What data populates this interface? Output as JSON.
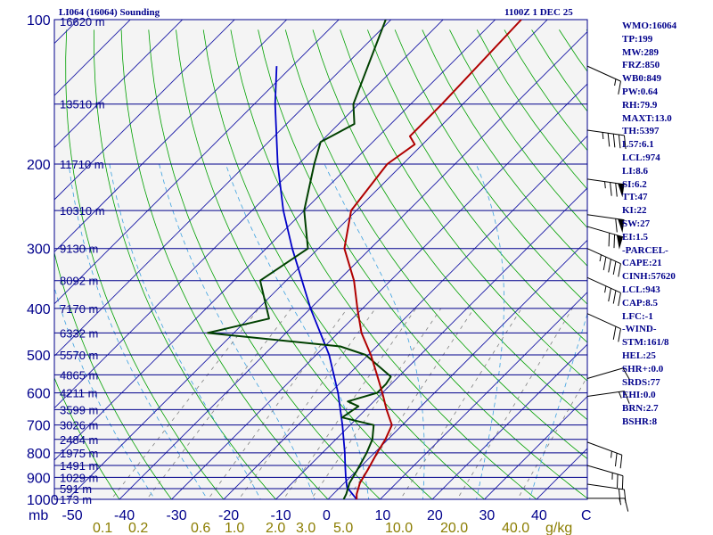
{
  "header": {
    "title": "LI064 (16064) Sounding",
    "time": "1100Z  1 DEC 25"
  },
  "indices": [
    "WMO:16064",
    "TP:199",
    "MW:289",
    "FRZ:850",
    "WB0:849",
    "PW:0.64",
    "RH:79.9",
    "MAXT:13.0",
    "TH:5397",
    "L57:6.1",
    "LCL:974",
    "LI:8.6",
    "SI:6.2",
    "TT:47",
    "KI:22",
    "SW:27",
    "EI:1.5",
    "-PARCEL-",
    "CAPE:21",
    "CINH:57620",
    "LCL:943",
    "CAP:8.5",
    "LFC:-1",
    "-WIND-",
    "STM:161/8",
    "HEL:25",
    "SHR+:0.0",
    "SRDS:77",
    "EHI:0.0",
    "BRN:2.7",
    "BSHR:8"
  ],
  "colors": {
    "background": "#ffffff",
    "plot_background": "#f4f4f4",
    "isobar": "#00008b",
    "isotherm": "#1a1aa6",
    "dry_adiabat": "#00a000",
    "moist_adiabat": "#3aa0e0",
    "mixing_ratio": "#808080",
    "temperature": "#b00000",
    "dewpoint": "#004000",
    "parcel": "#0000c8",
    "text": "#00008b",
    "wind_barb": "#000000"
  },
  "chart_data": {
    "type": "line",
    "subtype": "skew-T log-P sounding",
    "xlabel": "C",
    "ylabel": "mb",
    "x_range": [
      -50,
      50
    ],
    "p_range": [
      1000,
      100
    ],
    "pressure_ticks": [
      100,
      200,
      300,
      400,
      500,
      600,
      700,
      800,
      900,
      1000
    ],
    "temperature_ticks": [
      -50,
      -40,
      -30,
      -20,
      -10,
      0,
      10,
      20,
      30,
      40
    ],
    "mixing_ratio_label": "g/kg",
    "mixing_ratio_ticks": [
      "0.1",
      "0.2",
      "0.6",
      "1.0",
      "2.0",
      "3.0",
      "5.0",
      "10.0",
      "20.0",
      "40.0"
    ],
    "mixing_ratio_values": [
      0.1,
      0.2,
      0.6,
      1.0,
      2.0,
      3.0,
      5.0,
      10.0,
      20.0,
      40.0
    ],
    "height_levels": [
      {
        "p": 100,
        "label": "16620 m"
      },
      {
        "p": 150,
        "label": "13510 m"
      },
      {
        "p": 200,
        "label": "11710 m"
      },
      {
        "p": 250,
        "label": "10310 m"
      },
      {
        "p": 300,
        "label": "9130 m"
      },
      {
        "p": 350,
        "label": "8092 m"
      },
      {
        "p": 400,
        "label": "7170 m"
      },
      {
        "p": 450,
        "label": "6332 m"
      },
      {
        "p": 500,
        "label": "5570 m"
      },
      {
        "p": 550,
        "label": "4865 m"
      },
      {
        "p": 600,
        "label": "4211 m"
      },
      {
        "p": 650,
        "label": "3599 m"
      },
      {
        "p": 700,
        "label": "3026 m"
      },
      {
        "p": 750,
        "label": "2484 m"
      },
      {
        "p": 800,
        "label": "1975 m"
      },
      {
        "p": 850,
        "label": "1491 m"
      },
      {
        "p": 900,
        "label": "1029 m"
      },
      {
        "p": 950,
        "label": "591 m"
      },
      {
        "p": 1000,
        "label": "173 m"
      }
    ],
    "temperature": [
      {
        "p": 1012,
        "t": 6.0
      },
      {
        "p": 1000,
        "t": 5.5
      },
      {
        "p": 975,
        "t": 4.5
      },
      {
        "p": 925,
        "t": 3.0
      },
      {
        "p": 870,
        "t": 2.0
      },
      {
        "p": 800,
        "t": 0.5
      },
      {
        "p": 750,
        "t": -0.5
      },
      {
        "p": 700,
        "t": -2.0
      },
      {
        "p": 650,
        "t": -6.0
      },
      {
        "p": 600,
        "t": -10.0
      },
      {
        "p": 550,
        "t": -14.5
      },
      {
        "p": 500,
        "t": -19.5
      },
      {
        "p": 450,
        "t": -25.5
      },
      {
        "p": 400,
        "t": -31.0
      },
      {
        "p": 350,
        "t": -37.0
      },
      {
        "p": 300,
        "t": -45.0
      },
      {
        "p": 250,
        "t": -51.0
      },
      {
        "p": 200,
        "t": -53.0
      },
      {
        "p": 182,
        "t": -51.5
      },
      {
        "p": 175,
        "t": -54.0
      },
      {
        "p": 150,
        "t": -54.0
      },
      {
        "p": 100,
        "t": -55.0
      }
    ],
    "dewpoint": [
      {
        "p": 1012,
        "t": 4.0
      },
      {
        "p": 1000,
        "t": 3.0
      },
      {
        "p": 975,
        "t": 2.5
      },
      {
        "p": 925,
        "t": 1.0
      },
      {
        "p": 870,
        "t": 0.0
      },
      {
        "p": 800,
        "t": -1.5
      },
      {
        "p": 750,
        "t": -3.0
      },
      {
        "p": 700,
        "t": -5.5
      },
      {
        "p": 675,
        "t": -13.0
      },
      {
        "p": 640,
        "t": -12.0
      },
      {
        "p": 625,
        "t": -15.0
      },
      {
        "p": 600,
        "t": -11.0
      },
      {
        "p": 575,
        "t": -11.0
      },
      {
        "p": 555,
        "t": -11.5
      },
      {
        "p": 500,
        "t": -20.5
      },
      {
        "p": 480,
        "t": -27.0
      },
      {
        "p": 450,
        "t": -55.0
      },
      {
        "p": 420,
        "t": -46.0
      },
      {
        "p": 350,
        "t": -55.0
      },
      {
        "p": 300,
        "t": -52.0
      },
      {
        "p": 250,
        "t": -60.0
      },
      {
        "p": 200,
        "t": -67.0
      },
      {
        "p": 180,
        "t": -70.0
      },
      {
        "p": 165,
        "t": -67.0
      },
      {
        "p": 150,
        "t": -71.0
      },
      {
        "p": 100,
        "t": -81.0
      }
    ],
    "parcel": [
      {
        "p": 1000,
        "t": 5.5
      },
      {
        "p": 943,
        "t": 1.3
      },
      {
        "p": 900,
        "t": -0.8
      },
      {
        "p": 850,
        "t": -3.2
      },
      {
        "p": 800,
        "t": -5.7
      },
      {
        "p": 700,
        "t": -11.5
      },
      {
        "p": 600,
        "t": -18.5
      },
      {
        "p": 500,
        "t": -27.5
      },
      {
        "p": 400,
        "t": -40.0
      },
      {
        "p": 300,
        "t": -55.0
      },
      {
        "p": 250,
        "t": -64.0
      },
      {
        "p": 200,
        "t": -74.0
      },
      {
        "p": 150,
        "t": -86.0
      },
      {
        "p": 125,
        "t": -93.0
      }
    ],
    "wind_barbs": [
      {
        "p": 995,
        "dir": 270,
        "speed": 15
      },
      {
        "p": 930,
        "dir": 280,
        "speed": 20
      },
      {
        "p": 850,
        "dir": 290,
        "speed": 25
      },
      {
        "p": 760,
        "dir": 295,
        "speed": 25
      },
      {
        "p": 610,
        "dir": 260,
        "speed": 15
      },
      {
        "p": 560,
        "dir": 250,
        "speed": 10
      },
      {
        "p": 410,
        "dir": 300,
        "speed": 20
      },
      {
        "p": 345,
        "dir": 300,
        "speed": 35
      },
      {
        "p": 300,
        "dir": 300,
        "speed": 45
      },
      {
        "p": 270,
        "dir": 290,
        "speed": 70
      },
      {
        "p": 255,
        "dir": 280,
        "speed": 60
      },
      {
        "p": 215,
        "dir": 280,
        "speed": 75
      },
      {
        "p": 170,
        "dir": 280,
        "speed": 45
      },
      {
        "p": 125,
        "dir": 300,
        "speed": 15
      }
    ]
  }
}
